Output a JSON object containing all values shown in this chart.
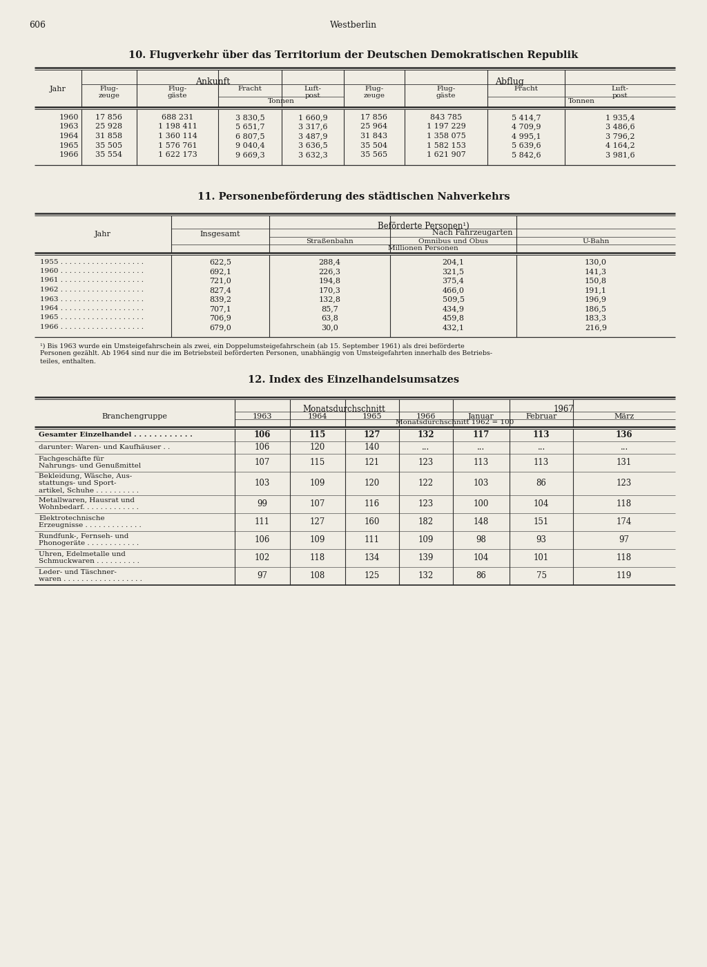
{
  "page_num": "606",
  "page_header": "Westberlin",
  "bg_color": "#f0ede4",
  "text_color": "#1a1a1a",
  "table1_title": "10. Flugverkehr über das Territorium der Deutschen Demokratischen Republik",
  "table1_rows": [
    [
      "1960",
      "17 856",
      "688 231",
      "3 830,5",
      "1 660,9",
      "17 856",
      "843 785",
      "5 414,7",
      "1 935,4"
    ],
    [
      "1963",
      "25 928",
      "1 198 411",
      "5 651,7",
      "3 317,6",
      "25 964",
      "1 197 229",
      "4 709,9",
      "3 486,6"
    ],
    [
      "1964",
      "31 858",
      "1 360 114",
      "6 807,5",
      "3 487,9",
      "31 843",
      "1 358 075",
      "4 995,1",
      "3 796,2"
    ],
    [
      "1965",
      "35 505",
      "1 576 761",
      "9 040,4",
      "3 636,5",
      "35 504",
      "1 582 153",
      "5 639,6",
      "4 164,2"
    ],
    [
      "1966",
      "35 554",
      "1 622 173",
      "9 669,3",
      "3 632,3",
      "35 565",
      "1 621 907",
      "5 842,6",
      "3 981,6"
    ]
  ],
  "table2_title": "11. Personenbeförderung des städtischen Nahverkehrs",
  "table2_footnote_lines": [
    "¹) Bis 1963 wurde ein Umsteigefahrschein als zwei, ein Doppelumsteigefahrschein (ab 15. September 1961) als drei beförderte",
    "Personen gezählt. Ab 1964 sind nur die im Betriebsteil beförderten Personen, unabhängig von Umsteigefahrten innerhalb des Betriebs-",
    "teiles, enthalten."
  ],
  "table2_rows": [
    [
      "1955 . . . . . . . . . . . . . . . . . . .",
      "622,5",
      "288,4",
      "204,1",
      "130,0"
    ],
    [
      "1960 . . . . . . . . . . . . . . . . . . .",
      "692,1",
      "226,3",
      "321,5",
      "141,3"
    ],
    [
      "1961 . . . . . . . . . . . . . . . . . . .",
      "721,0",
      "194,8",
      "375,4",
      "150,8"
    ],
    [
      "1962 . . . . . . . . . . . . . . . . . . .",
      "827,4",
      "170,3",
      "466,0",
      "191,1"
    ],
    [
      "1963 . . . . . . . . . . . . . . . . . . .",
      "839,2",
      "132,8",
      "509,5",
      "196,9"
    ],
    [
      "1964 . . . . . . . . . . . . . . . . . . .",
      "707,1",
      "85,7",
      "434,9",
      "186,5"
    ],
    [
      "1965 . . . . . . . . . . . . . . . . . . .",
      "706,9",
      "63,8",
      "459,8",
      "183,3"
    ],
    [
      "1966 . . . . . . . . . . . . . . . . . . .",
      "679,0",
      "30,0",
      "432,1",
      "216,9"
    ]
  ],
  "table3_title": "12. Index des Einzelhandelsumsatzes",
  "table3_unit": "Monatsdurchschnitt 1962 = 100",
  "table3_rows": [
    [
      "Gesamter Einzelhandel . . . . . . . . . . . .",
      "106",
      "115",
      "127",
      "132",
      "117",
      "113",
      "136",
      "bold"
    ],
    [
      "darunter: Waren- und Kaufhäuser . .",
      "106",
      "120",
      "140",
      "...",
      "...",
      "...",
      "...",
      "normal"
    ],
    [
      "Fachgeschäfte für\nNahrungs- und Genußmittel",
      "107",
      "115",
      "121",
      "123",
      "113",
      "113",
      "131",
      "normal"
    ],
    [
      "Bekleidung, Wäsche, Aus-\nstattungs- und Sport-\nartikel, Schuhe . . . . . . . . . .",
      "103",
      "109",
      "120",
      "122",
      "103",
      "86",
      "123",
      "normal"
    ],
    [
      "Metallwaren, Hausrat und\nWohnbedarf. . . . . . . . . . . . .",
      "99",
      "107",
      "116",
      "123",
      "100",
      "104",
      "118",
      "normal"
    ],
    [
      "Elektrotechnische\nErzeugnisse . . . . . . . . . . . . .",
      "111",
      "127",
      "160",
      "182",
      "148",
      "151",
      "174",
      "normal"
    ],
    [
      "Rundfunk-, Fernseh- und\nPhonogeräte . . . . . . . . . . . .",
      "106",
      "109",
      "111",
      "109",
      "98",
      "93",
      "97",
      "normal"
    ],
    [
      "Uhren, Edelmetalle und\nSchmuckwaren . . . . . . . . . .",
      "102",
      "118",
      "134",
      "139",
      "104",
      "101",
      "118",
      "normal"
    ],
    [
      "Leder- und Täschner-\nwaren . . . . . . . . . . . . . . . . . .",
      "97",
      "108",
      "125",
      "132",
      "86",
      "75",
      "119",
      "normal"
    ]
  ]
}
